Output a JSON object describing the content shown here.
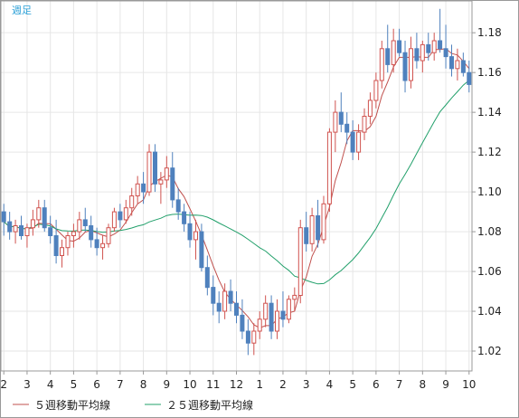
{
  "period_label": "週足",
  "colors": {
    "up_body": "#ffffff",
    "up_outline": "#d0534f",
    "down_body": "#4f81bd",
    "down_outline": "#4f81bd",
    "ma5": "#c0504d",
    "ma25": "#22a06b",
    "grid": "#e6e6e6",
    "frame": "#999999"
  },
  "chart_data": {
    "type": "candlestick",
    "title": "",
    "x_tick_labels": [
      "2",
      "3",
      "4",
      "5",
      "6",
      "7",
      "8",
      "9",
      "10",
      "11",
      "12",
      "1",
      "2",
      "3",
      "4",
      "5",
      "6",
      "7",
      "8",
      "9",
      "10"
    ],
    "x_tick_index": [
      0,
      4,
      8,
      12,
      16,
      20,
      24,
      28,
      32,
      36,
      40,
      44,
      48,
      52,
      56,
      60,
      64,
      68,
      72,
      76,
      80
    ],
    "y_tick_labels": [
      "1.18",
      "1.16",
      "1.14",
      "1.12",
      "1.10",
      "1.08",
      "1.06",
      "1.04",
      "1.02"
    ],
    "ylim": [
      1.01,
      1.196
    ],
    "grid": true,
    "ohlc": [
      [
        1.09,
        1.094,
        1.078,
        1.085
      ],
      [
        1.085,
        1.09,
        1.076,
        1.08
      ],
      [
        1.08,
        1.086,
        1.074,
        1.083
      ],
      [
        1.083,
        1.088,
        1.076,
        1.078
      ],
      [
        1.078,
        1.084,
        1.072,
        1.082
      ],
      [
        1.082,
        1.091,
        1.078,
        1.086
      ],
      [
        1.086,
        1.096,
        1.082,
        1.092
      ],
      [
        1.092,
        1.096,
        1.08,
        1.082
      ],
      [
        1.082,
        1.088,
        1.074,
        1.078
      ],
      [
        1.078,
        1.086,
        1.064,
        1.068
      ],
      [
        1.068,
        1.076,
        1.062,
        1.072
      ],
      [
        1.072,
        1.08,
        1.068,
        1.078
      ],
      [
        1.078,
        1.084,
        1.072,
        1.08
      ],
      [
        1.08,
        1.09,
        1.076,
        1.086
      ],
      [
        1.086,
        1.092,
        1.08,
        1.083
      ],
      [
        1.083,
        1.088,
        1.072,
        1.076
      ],
      [
        1.076,
        1.082,
        1.068,
        1.072
      ],
      [
        1.072,
        1.078,
        1.066,
        1.074
      ],
      [
        1.074,
        1.084,
        1.072,
        1.082
      ],
      [
        1.082,
        1.092,
        1.08,
        1.09
      ],
      [
        1.09,
        1.094,
        1.082,
        1.086
      ],
      [
        1.086,
        1.096,
        1.084,
        1.092
      ],
      [
        1.092,
        1.102,
        1.088,
        1.098
      ],
      [
        1.098,
        1.108,
        1.094,
        1.104
      ],
      [
        1.104,
        1.11,
        1.094,
        1.1
      ],
      [
        1.1,
        1.124,
        1.098,
        1.12
      ],
      [
        1.12,
        1.124,
        1.1,
        1.104
      ],
      [
        1.104,
        1.11,
        1.094,
        1.106
      ],
      [
        1.106,
        1.118,
        1.102,
        1.112
      ],
      [
        1.112,
        1.12,
        1.092,
        1.096
      ],
      [
        1.096,
        1.102,
        1.086,
        1.09
      ],
      [
        1.09,
        1.094,
        1.08,
        1.084
      ],
      [
        1.084,
        1.09,
        1.072,
        1.076
      ],
      [
        1.076,
        1.086,
        1.066,
        1.08
      ],
      [
        1.08,
        1.084,
        1.06,
        1.062
      ],
      [
        1.062,
        1.068,
        1.048,
        1.052
      ],
      [
        1.052,
        1.058,
        1.038,
        1.044
      ],
      [
        1.044,
        1.05,
        1.034,
        1.04
      ],
      [
        1.04,
        1.054,
        1.036,
        1.05
      ],
      [
        1.05,
        1.056,
        1.04,
        1.044
      ],
      [
        1.044,
        1.05,
        1.034,
        1.038
      ],
      [
        1.038,
        1.046,
        1.026,
        1.03
      ],
      [
        1.03,
        1.036,
        1.018,
        1.024
      ],
      [
        1.024,
        1.034,
        1.018,
        1.03
      ],
      [
        1.03,
        1.04,
        1.026,
        1.036
      ],
      [
        1.036,
        1.048,
        1.032,
        1.044
      ],
      [
        1.044,
        1.048,
        1.026,
        1.03
      ],
      [
        1.03,
        1.046,
        1.026,
        1.04
      ],
      [
        1.04,
        1.05,
        1.032,
        1.036
      ],
      [
        1.036,
        1.048,
        1.034,
        1.046
      ],
      [
        1.046,
        1.052,
        1.04,
        1.048
      ],
      [
        1.048,
        1.086,
        1.044,
        1.082
      ],
      [
        1.082,
        1.09,
        1.07,
        1.074
      ],
      [
        1.074,
        1.092,
        1.07,
        1.088
      ],
      [
        1.088,
        1.096,
        1.072,
        1.076
      ],
      [
        1.076,
        1.098,
        1.074,
        1.094
      ],
      [
        1.094,
        1.132,
        1.09,
        1.13
      ],
      [
        1.13,
        1.146,
        1.12,
        1.14
      ],
      [
        1.14,
        1.15,
        1.13,
        1.134
      ],
      [
        1.134,
        1.14,
        1.124,
        1.13
      ],
      [
        1.13,
        1.136,
        1.116,
        1.12
      ],
      [
        1.12,
        1.134,
        1.116,
        1.13
      ],
      [
        1.13,
        1.142,
        1.126,
        1.138
      ],
      [
        1.138,
        1.15,
        1.134,
        1.146
      ],
      [
        1.146,
        1.16,
        1.142,
        1.156
      ],
      [
        1.156,
        1.176,
        1.152,
        1.172
      ],
      [
        1.172,
        1.184,
        1.16,
        1.164
      ],
      [
        1.164,
        1.182,
        1.16,
        1.176
      ],
      [
        1.176,
        1.182,
        1.168,
        1.17
      ],
      [
        1.17,
        1.176,
        1.15,
        1.156
      ],
      [
        1.156,
        1.178,
        1.152,
        1.172
      ],
      [
        1.172,
        1.18,
        1.162,
        1.166
      ],
      [
        1.166,
        1.176,
        1.16,
        1.174
      ],
      [
        1.174,
        1.18,
        1.166,
        1.17
      ],
      [
        1.17,
        1.18,
        1.166,
        1.176
      ],
      [
        1.176,
        1.192,
        1.17,
        1.172
      ],
      [
        1.172,
        1.184,
        1.162,
        1.168
      ],
      [
        1.168,
        1.174,
        1.158,
        1.162
      ],
      [
        1.162,
        1.172,
        1.156,
        1.166
      ],
      [
        1.166,
        1.17,
        1.158,
        1.16
      ],
      [
        1.16,
        1.166,
        1.15,
        1.154
      ]
    ],
    "series": [
      {
        "name": "５週移動平均線",
        "type": "sma",
        "period": 5
      },
      {
        "name": "２５週移動平均線",
        "type": "sma",
        "period": 25
      }
    ]
  }
}
